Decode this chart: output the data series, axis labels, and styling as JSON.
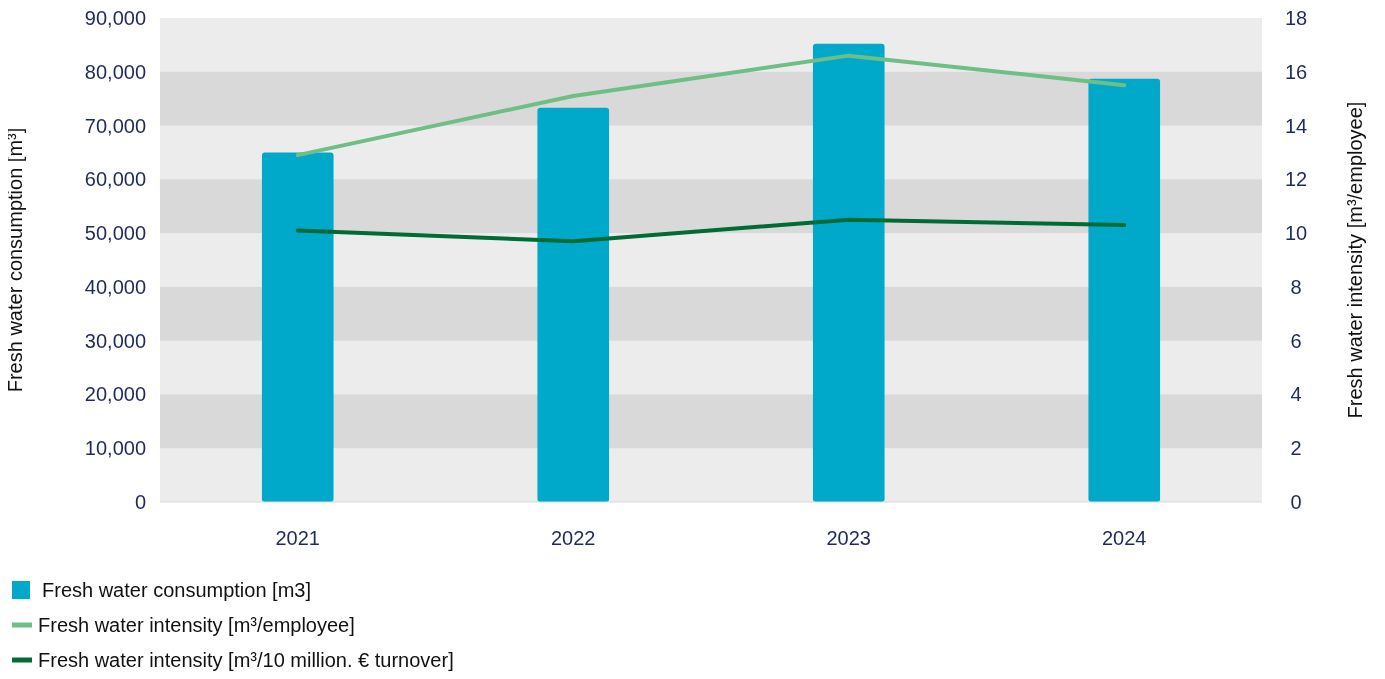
{
  "chart_data": {
    "type": "bar",
    "categories": [
      "2021",
      "2022",
      "2023",
      "2024"
    ],
    "ylabel": "Fresh water consumption [m³]",
    "y2label": "Fresh water intensity [m³/employee]",
    "ylim": [
      0,
      90000
    ],
    "yticks": [
      {
        "value": 0,
        "label": "0"
      },
      {
        "value": 10000,
        "label": "10,000"
      },
      {
        "value": 20000,
        "label": "20,000"
      },
      {
        "value": 30000,
        "label": "30,000"
      },
      {
        "value": 40000,
        "label": "40,000"
      },
      {
        "value": 50000,
        "label": "50,000"
      },
      {
        "value": 60000,
        "label": "60,000"
      },
      {
        "value": 70000,
        "label": "70,000"
      },
      {
        "value": 80000,
        "label": "80,000"
      },
      {
        "value": 90000,
        "label": "90,000"
      }
    ],
    "y2lim": [
      0,
      18
    ],
    "y2ticks": [
      0,
      2,
      4,
      6,
      8,
      10,
      12,
      14,
      16,
      18
    ],
    "legend": "bottom",
    "bands": [
      {
        "axis": "y",
        "from": 10000,
        "to": 20000,
        "color": "#d9d9d9"
      },
      {
        "axis": "y",
        "from": 30000,
        "to": 40000,
        "color": "#d9d9d9"
      },
      {
        "axis": "y",
        "from": 50000,
        "to": 60000,
        "color": "#d9d9d9"
      },
      {
        "axis": "y",
        "from": 70000,
        "to": 80000,
        "color": "#d9d9d9"
      }
    ],
    "series": [
      {
        "name": "Fresh water consumption [m3]",
        "color": "#00a9c9",
        "values": [
          65000,
          73300,
          85200,
          78700
        ]
      },
      {
        "name": "Fresh water intensity [m³/employee]",
        "type": "line",
        "axis": "y2",
        "color": "#6dbf85",
        "values": [
          12.9,
          15.1,
          16.6,
          15.5
        ]
      },
      {
        "name": "Fresh water intensity [m³/10 million. € turnover]",
        "type": "line",
        "axis": "y2",
        "color": "#006b35",
        "values": [
          10.1,
          9.7,
          10.5,
          10.3
        ]
      }
    ]
  }
}
